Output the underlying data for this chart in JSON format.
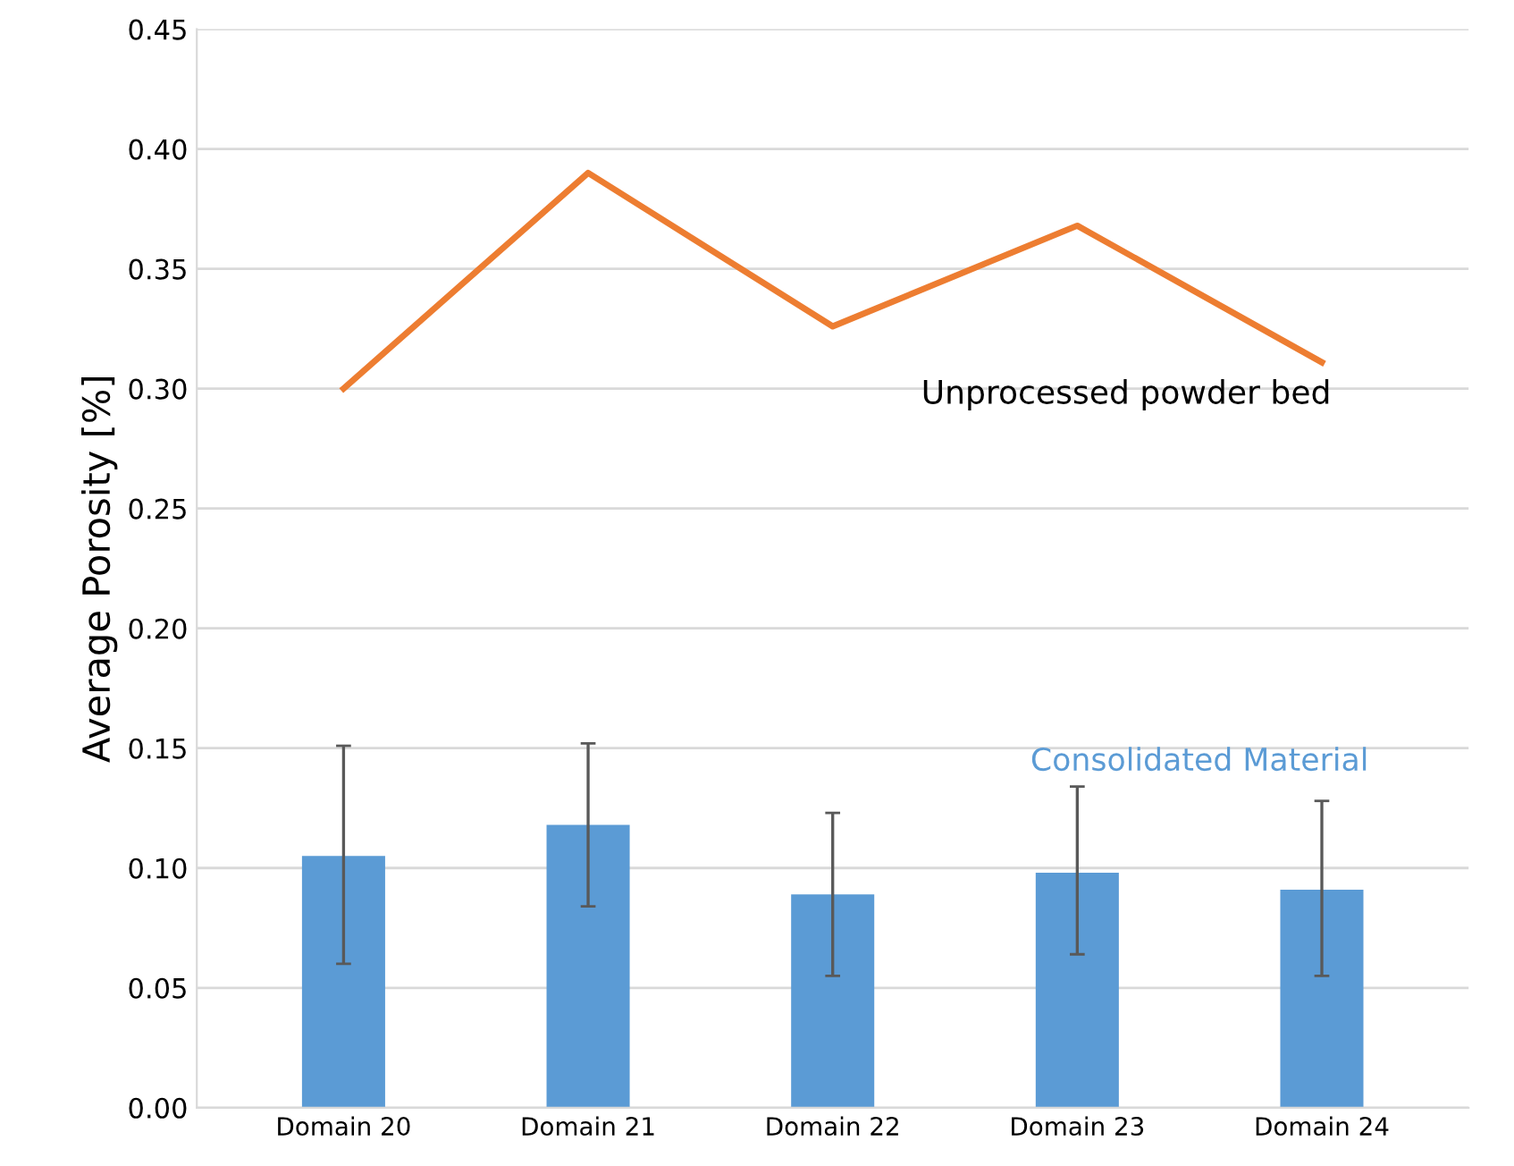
{
  "chart_data": {
    "type": "bar",
    "ylabel": "Average Porosity [%]",
    "categories": [
      "Domain 20",
      "Domain 21",
      "Domain 22",
      "Domain 23",
      "Domain 24"
    ],
    "series": [
      {
        "name": "Consolidated Material",
        "color": "#5b9bd5",
        "values": [
          0.105,
          0.118,
          0.089,
          0.098,
          0.091
        ],
        "errors": [
          [
            0.06,
            0.151
          ],
          [
            0.084,
            0.152
          ],
          [
            0.055,
            0.123
          ],
          [
            0.064,
            0.134
          ],
          [
            0.055,
            0.128
          ]
        ]
      },
      {
        "name": "Unprocessed powder bed",
        "type": "line",
        "color": "#ed7d31",
        "values": [
          0.3,
          0.39,
          0.326,
          0.368,
          0.311
        ]
      }
    ],
    "ylim": [
      0,
      0.45
    ],
    "yticks": [
      {
        "value": 0,
        "label": "0.00"
      },
      {
        "value": 0.05,
        "label": "0.05"
      },
      {
        "value": 0.1,
        "label": "0.10"
      },
      {
        "value": 0.15,
        "label": "0.15"
      },
      {
        "value": 0.2,
        "label": "0.20"
      },
      {
        "value": 0.25,
        "label": "0.25"
      },
      {
        "value": 0.3,
        "label": "0.30"
      },
      {
        "value": 0.35,
        "label": "0.35"
      },
      {
        "value": 0.4,
        "label": "0.40"
      },
      {
        "value": 0.45,
        "label": "0.45"
      }
    ],
    "grid": "y",
    "legend": false
  }
}
